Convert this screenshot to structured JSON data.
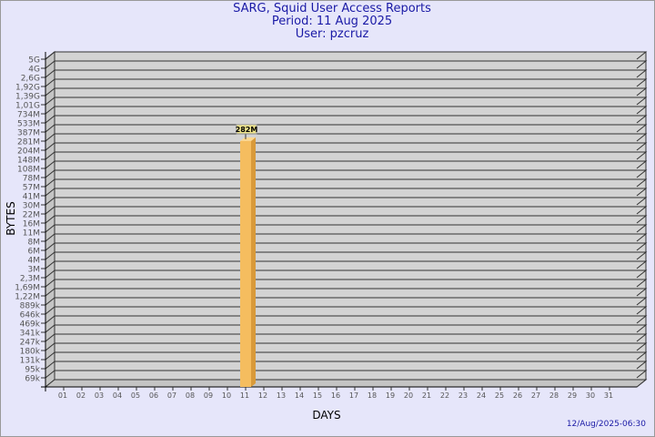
{
  "chart_data": {
    "type": "bar",
    "title": "SARG, Squid User Access Reports",
    "subtitle": [
      "Period: 11 Aug 2025",
      "User: pzcruz"
    ],
    "xlabel": "DAYS",
    "ylabel": "BYTES",
    "yscale": "log",
    "yticks": [
      "5G",
      "4G",
      "2,6G",
      "1,92G",
      "1,39G",
      "1,01G",
      "734M",
      "533M",
      "387M",
      "281M",
      "204M",
      "148M",
      "108M",
      "78M",
      "57M",
      "41M",
      "30M",
      "22M",
      "16M",
      "11M",
      "8M",
      "6M",
      "4M",
      "3M",
      "2,3M",
      "1,69M",
      "1,22M",
      "889k",
      "646k",
      "469k",
      "341k",
      "247k",
      "180k",
      "131k",
      "95k",
      "69k"
    ],
    "categories": [
      "01",
      "02",
      "03",
      "04",
      "05",
      "06",
      "07",
      "08",
      "09",
      "10",
      "11",
      "12",
      "13",
      "14",
      "15",
      "16",
      "17",
      "18",
      "19",
      "20",
      "21",
      "22",
      "23",
      "24",
      "25",
      "26",
      "27",
      "28",
      "29",
      "30",
      "31"
    ],
    "bars": [
      {
        "day": "11",
        "value_label": "282M"
      }
    ],
    "grid": true,
    "colors": {
      "bar": "#f5bd5f",
      "bar_side": "#d99a3a",
      "plot": "#d3d3d3",
      "wall": "#c4c4c4",
      "title": "#1a1aa6",
      "background": "#e6e6fa"
    }
  },
  "footer": {
    "timestamp": "12/Aug/2025-06:30"
  }
}
